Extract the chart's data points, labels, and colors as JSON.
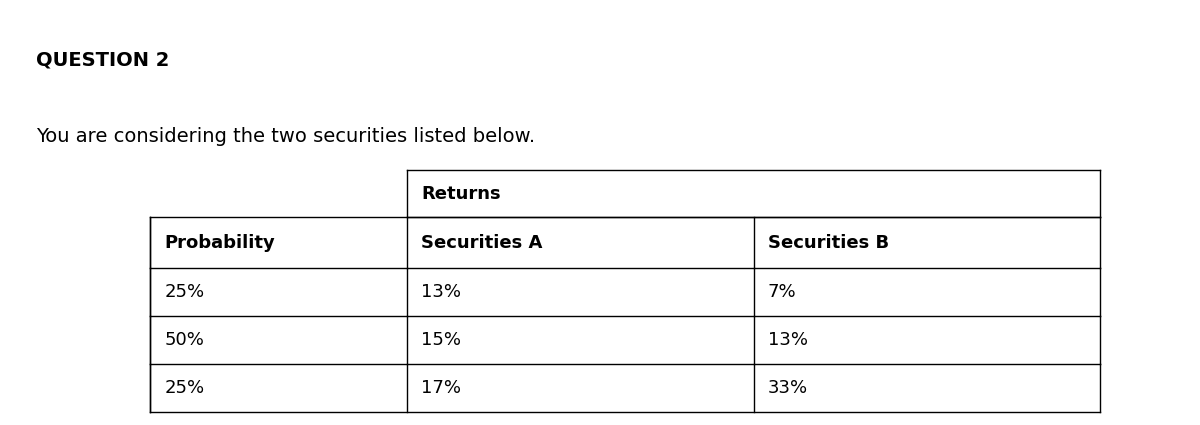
{
  "title": "QUESTION 2",
  "subtitle": "You are considering the two securities listed below.",
  "title_fontsize": 14,
  "subtitle_fontsize": 14,
  "table_header_top": "Returns",
  "col_headers": [
    "Probability",
    "Securities A",
    "Securities B"
  ],
  "rows": [
    [
      "25%",
      "13%",
      "7%"
    ],
    [
      "50%",
      "15%",
      "13%"
    ],
    [
      "25%",
      "17%",
      "33%"
    ]
  ],
  "background_color": "#ffffff",
  "text_color": "#000000",
  "cell_fontsize": 13,
  "header_fontsize": 13,
  "fig_width": 12.0,
  "fig_height": 4.25,
  "dpi": 100
}
